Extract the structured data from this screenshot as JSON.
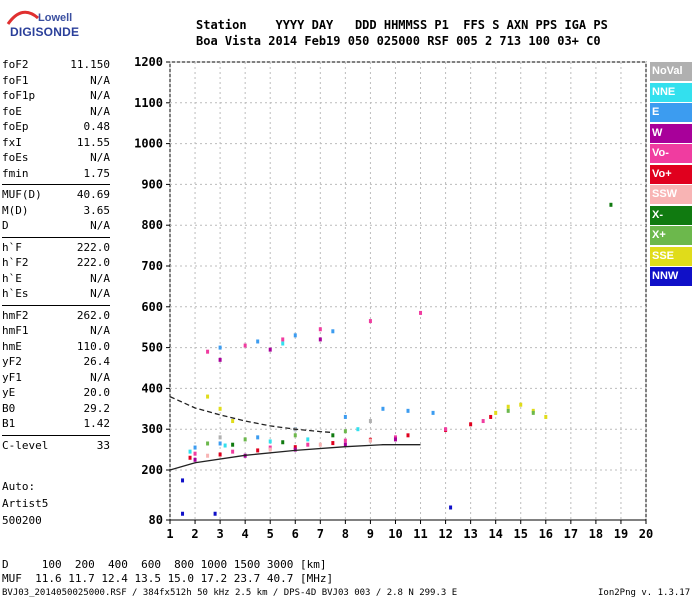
{
  "logo": {
    "line1": "Lowell",
    "line2": "DIGISONDE"
  },
  "header": {
    "row1": "Station    YYYY DAY   DDD HHMMSS P1  FFS S AXN PPS IGA PS",
    "row2": "Boa Vista 2014 Feb19 050 025000 RSF 005 2 713 100 03+ C0"
  },
  "params": [
    [
      {
        "name": "foF2",
        "value": "11.150"
      },
      {
        "name": "foF1",
        "value": "N/A"
      },
      {
        "name": "foF1p",
        "value": "N/A"
      },
      {
        "name": "foE",
        "value": "N/A"
      },
      {
        "name": "foEp",
        "value": "0.48"
      },
      {
        "name": "fxI",
        "value": "11.55"
      },
      {
        "name": "foEs",
        "value": "N/A"
      },
      {
        "name": "fmin",
        "value": "1.75"
      }
    ],
    [
      {
        "name": "MUF(D)",
        "value": "40.69"
      },
      {
        "name": "M(D)",
        "value": "3.65"
      },
      {
        "name": "D",
        "value": "N/A"
      }
    ],
    [
      {
        "name": "h`F",
        "value": "222.0"
      },
      {
        "name": "h`F2",
        "value": "222.0"
      },
      {
        "name": "h`E",
        "value": "N/A"
      },
      {
        "name": "h`Es",
        "value": "N/A"
      }
    ],
    [
      {
        "name": "hmF2",
        "value": "262.0"
      },
      {
        "name": "hmF1",
        "value": "N/A"
      },
      {
        "name": "hmE",
        "value": "110.0"
      },
      {
        "name": "yF2",
        "value": "26.4"
      },
      {
        "name": "yF1",
        "value": "N/A"
      },
      {
        "name": "yE",
        "value": "20.0"
      },
      {
        "name": "B0",
        "value": "29.2"
      },
      {
        "name": "B1",
        "value": "1.42"
      }
    ],
    [
      {
        "name": "C-level",
        "value": "33"
      }
    ]
  ],
  "autoscale": {
    "line1": "Auto:",
    "line2": "Artist5",
    "line3": "500200"
  },
  "footer": {
    "d_row": "D     100  200  400  600  800 1000 1500 3000 [km]",
    "muf_row": "MUF  11.6 11.7 12.4 13.5 15.0 17.2 23.7 40.7 [MHz]",
    "file_info": "BVJ03_2014050025000.RSF / 384fx512h 50 kHz 2.5 km / DPS-4D BVJ03 003 / 2.8 N 299.3 E",
    "version": "Ion2Png v. 1.3.17"
  },
  "legend": [
    {
      "label": "NoVal",
      "color": "#b0b0b0"
    },
    {
      "label": "NNE",
      "color": "#33e0ee"
    },
    {
      "label": "E",
      "color": "#3c9cf0"
    },
    {
      "label": "W",
      "color": "#a8009a"
    },
    {
      "label": "Vo-",
      "color": "#f03ca0"
    },
    {
      "label": "Vo+",
      "color": "#e0001e"
    },
    {
      "label": "SSW",
      "color": "#f8b4b4"
    },
    {
      "label": "X-",
      "color": "#107a10"
    },
    {
      "label": "X+",
      "color": "#6cb84c"
    },
    {
      "label": "SSE",
      "color": "#e0dc1a"
    },
    {
      "label": "NNW",
      "color": "#1010c8"
    }
  ],
  "chart_data": {
    "type": "scatter",
    "x_ticks": [
      1,
      2,
      3,
      4,
      5,
      6,
      7,
      8,
      9,
      10,
      11,
      12,
      13,
      14,
      15,
      16,
      17,
      18,
      19,
      20
    ],
    "y_ticks": [
      80,
      200,
      300,
      400,
      500,
      600,
      700,
      800,
      900,
      1000,
      1100,
      1200
    ],
    "xlim": [
      1,
      20
    ],
    "ylim": [
      80,
      1200
    ],
    "grid": true,
    "series": [
      {
        "name": "Vo+",
        "color": "#e0001e",
        "points": [
          [
            1.8,
            230
          ],
          [
            3,
            238
          ],
          [
            4.5,
            248
          ],
          [
            6,
            256
          ],
          [
            7.5,
            266
          ],
          [
            9,
            274
          ],
          [
            10.5,
            285
          ],
          [
            12,
            298
          ],
          [
            13,
            312
          ],
          [
            13.8,
            330
          ]
        ]
      },
      {
        "name": "Vo-",
        "color": "#f03ca0",
        "points": [
          [
            2,
            240
          ],
          [
            3.5,
            245
          ],
          [
            5,
            255
          ],
          [
            6.5,
            262
          ],
          [
            8,
            272
          ],
          [
            10,
            280
          ],
          [
            12,
            300
          ],
          [
            13.5,
            320
          ],
          [
            2.5,
            490
          ],
          [
            4,
            505
          ],
          [
            5.5,
            520
          ],
          [
            7,
            545
          ],
          [
            9,
            565
          ],
          [
            11,
            585
          ]
        ]
      },
      {
        "name": "E",
        "color": "#3c9cf0",
        "points": [
          [
            2,
            255
          ],
          [
            3,
            265
          ],
          [
            4.5,
            280
          ],
          [
            6,
            300
          ],
          [
            8,
            330
          ],
          [
            9.5,
            350
          ],
          [
            10.5,
            345
          ],
          [
            11.5,
            340
          ],
          [
            3,
            500
          ],
          [
            4.5,
            515
          ],
          [
            6,
            530
          ],
          [
            7.5,
            540
          ]
        ]
      },
      {
        "name": "NNE",
        "color": "#33e0ee",
        "points": [
          [
            1.8,
            245
          ],
          [
            3.2,
            260
          ],
          [
            5,
            270
          ],
          [
            6.5,
            275
          ],
          [
            8.5,
            300
          ],
          [
            5.5,
            510
          ]
        ]
      },
      {
        "name": "SSE",
        "color": "#e0dc1a",
        "points": [
          [
            2.5,
            380
          ],
          [
            3,
            350
          ],
          [
            3.5,
            320
          ],
          [
            14,
            340
          ],
          [
            14.5,
            355
          ],
          [
            15,
            360
          ],
          [
            15.5,
            345
          ],
          [
            16,
            330
          ]
        ]
      },
      {
        "name": "X+",
        "color": "#6cb84c",
        "points": [
          [
            2.5,
            265
          ],
          [
            4,
            275
          ],
          [
            6,
            285
          ],
          [
            8,
            295
          ],
          [
            14.5,
            345
          ],
          [
            15.5,
            340
          ]
        ]
      },
      {
        "name": "W",
        "color": "#a8009a",
        "points": [
          [
            2,
            225
          ],
          [
            4,
            235
          ],
          [
            6,
            250
          ],
          [
            8,
            262
          ],
          [
            10,
            275
          ],
          [
            3,
            470
          ],
          [
            5,
            495
          ],
          [
            7,
            520
          ]
        ]
      },
      {
        "name": "SSW",
        "color": "#f8b4b4",
        "points": [
          [
            2.5,
            235
          ],
          [
            5,
            250
          ],
          [
            7,
            262
          ],
          [
            9,
            272
          ]
        ]
      },
      {
        "name": "X-",
        "color": "#107a10",
        "points": [
          [
            3.5,
            262
          ],
          [
            5.5,
            268
          ],
          [
            7.5,
            285
          ],
          [
            18.6,
            850
          ]
        ]
      },
      {
        "name": "NNW",
        "color": "#1010c8",
        "points": [
          [
            1.5,
            95
          ],
          [
            1.5,
            175
          ],
          [
            2.8,
            95
          ],
          [
            12.2,
            110
          ]
        ]
      },
      {
        "name": "NoVal",
        "color": "#b0b0b0",
        "points": [
          [
            3,
            280
          ],
          [
            6,
            300
          ],
          [
            9,
            320
          ]
        ]
      }
    ],
    "curves": [
      {
        "name": "O-trace profile",
        "style": "solid",
        "points": [
          [
            1,
            200
          ],
          [
            2,
            218
          ],
          [
            4,
            236
          ],
          [
            6,
            248
          ],
          [
            8,
            257
          ],
          [
            9.5,
            262
          ],
          [
            11,
            262
          ]
        ]
      },
      {
        "name": "X-trace profile",
        "style": "dashed",
        "points": [
          [
            1,
            380
          ],
          [
            2,
            352
          ],
          [
            3,
            335
          ],
          [
            4,
            320
          ],
          [
            5,
            308
          ],
          [
            6,
            300
          ],
          [
            7,
            294
          ],
          [
            7.5,
            292
          ]
        ]
      }
    ]
  }
}
